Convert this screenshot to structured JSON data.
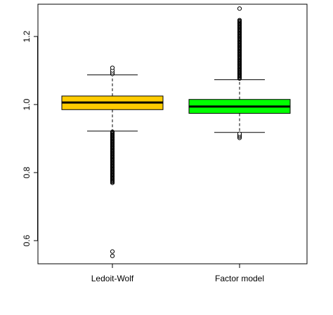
{
  "chart_data": {
    "type": "boxplot",
    "title": "",
    "xlabel": "",
    "ylabel": "",
    "categories": [
      "Ledoit-Wolf",
      "Factor model"
    ],
    "ylim": [
      0.54,
      1.3
    ],
    "yticks": [
      {
        "value": 0.6,
        "label": "0.6"
      },
      {
        "value": 0.8,
        "label": "0.8"
      },
      {
        "value": 1.0,
        "label": "1.0"
      },
      {
        "value": 1.2,
        "label": "1.2"
      }
    ],
    "grid": false,
    "boxes": [
      {
        "name": "Ledoit-Wolf",
        "color": "#ffcc00",
        "whisker_low": 0.922,
        "q1": 0.985,
        "median": 1.006,
        "q3": 1.025,
        "whisker_high": 1.087,
        "outliers_high": [
          1.09,
          1.094,
          1.1,
          1.108
        ],
        "outlier_band_low": [
          0.768,
          0.92
        ],
        "outliers_low": [
          0.555,
          0.568
        ]
      },
      {
        "name": "Factor model",
        "color": "#00ff00",
        "whisker_low": 0.918,
        "q1": 0.974,
        "median": 0.994,
        "q3": 1.015,
        "whisker_high": 1.073,
        "outlier_band_high": [
          1.075,
          1.248
        ],
        "outliers_high": [
          1.282
        ],
        "outliers_low": [
          0.902,
          0.906,
          0.91,
          0.914
        ]
      }
    ]
  }
}
